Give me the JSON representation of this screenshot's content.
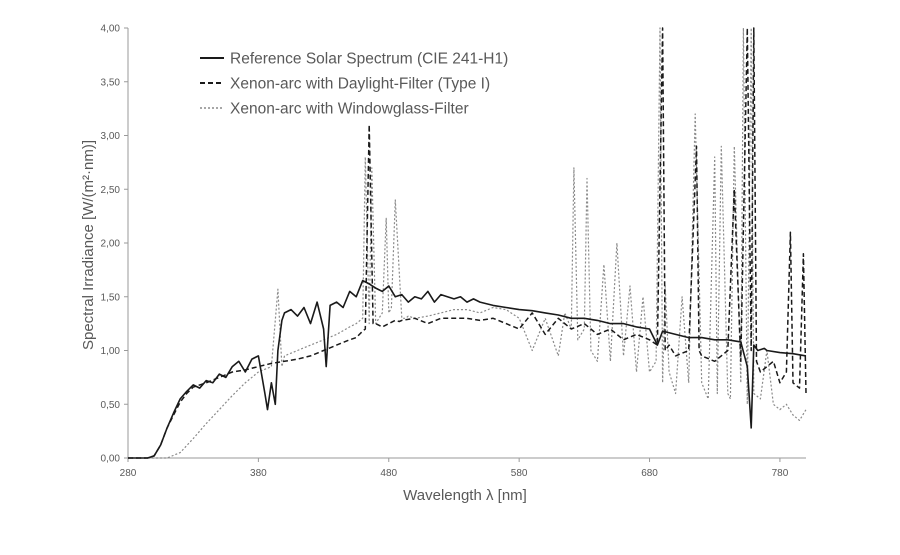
{
  "chart_data": {
    "type": "line",
    "title": "",
    "xlabel": "Wavelength λ [nm]",
    "ylabel": "Spectral Irradiance [W/(m²·nm)]",
    "xlim": [
      280,
      800
    ],
    "ylim": [
      0,
      4
    ],
    "grid": false,
    "legend_position": "top-left",
    "x_ticks": [
      280,
      380,
      480,
      580,
      680,
      780
    ],
    "x_tick_labels": [
      "280",
      "380",
      "480",
      "580",
      "680",
      "780"
    ],
    "y_ticks": [
      0,
      0.5,
      1,
      1.5,
      2,
      2.5,
      3,
      3.5,
      4
    ],
    "y_tick_labels": [
      "0,00",
      "0,50",
      "1,00",
      "1,50",
      "2,00",
      "2,50",
      "3,00",
      "3,50",
      "4,00"
    ],
    "series": [
      {
        "name": "Reference Solar Spectrum (CIE 241-H1)",
        "style": "solid",
        "color": "#1a1a1a",
        "x": [
          280,
          295,
          300,
          305,
          310,
          315,
          320,
          325,
          330,
          335,
          340,
          345,
          350,
          355,
          360,
          365,
          370,
          375,
          380,
          385,
          387,
          390,
          393,
          395,
          398,
          400,
          405,
          410,
          415,
          420,
          425,
          430,
          432,
          435,
          440,
          445,
          450,
          455,
          460,
          465,
          470,
          475,
          480,
          485,
          490,
          495,
          500,
          505,
          510,
          515,
          520,
          525,
          530,
          535,
          540,
          545,
          550,
          560,
          570,
          580,
          590,
          600,
          610,
          620,
          630,
          640,
          650,
          660,
          670,
          680,
          686,
          690,
          700,
          710,
          720,
          730,
          740,
          750,
          755,
          758,
          760,
          763,
          768,
          770,
          780,
          790,
          800
        ],
        "y": [
          0,
          0,
          0.02,
          0.12,
          0.28,
          0.42,
          0.55,
          0.62,
          0.68,
          0.65,
          0.72,
          0.7,
          0.78,
          0.75,
          0.85,
          0.9,
          0.8,
          0.92,
          0.95,
          0.6,
          0.45,
          0.7,
          0.5,
          1.0,
          1.28,
          1.35,
          1.38,
          1.32,
          1.4,
          1.25,
          1.45,
          1.2,
          0.85,
          1.42,
          1.45,
          1.4,
          1.55,
          1.5,
          1.65,
          1.62,
          1.58,
          1.55,
          1.6,
          1.5,
          1.52,
          1.45,
          1.5,
          1.48,
          1.55,
          1.45,
          1.52,
          1.5,
          1.48,
          1.5,
          1.45,
          1.48,
          1.45,
          1.42,
          1.4,
          1.38,
          1.37,
          1.35,
          1.33,
          1.3,
          1.3,
          1.28,
          1.25,
          1.25,
          1.22,
          1.2,
          1.05,
          1.18,
          1.15,
          1.12,
          1.12,
          1.1,
          1.1,
          1.08,
          0.85,
          0.28,
          1.05,
          1.0,
          1.02,
          1.0,
          0.98,
          0.97,
          0.95
        ]
      },
      {
        "name": "Xenon-arc with Daylight-Filter (Type I)",
        "style": "dashed",
        "color": "#1a1a1a",
        "x": [
          280,
          295,
          300,
          305,
          310,
          315,
          320,
          325,
          330,
          340,
          350,
          360,
          370,
          380,
          390,
          400,
          410,
          420,
          430,
          440,
          450,
          455,
          460,
          462,
          465,
          468,
          470,
          475,
          480,
          485,
          488,
          490,
          500,
          510,
          520,
          530,
          540,
          550,
          560,
          570,
          580,
          590,
          600,
          610,
          620,
          630,
          640,
          650,
          660,
          670,
          680,
          686,
          690,
          692,
          695,
          700,
          710,
          716,
          718,
          720,
          730,
          740,
          745,
          750,
          755,
          758,
          760,
          762,
          765,
          770,
          775,
          780,
          785,
          788,
          790,
          795,
          798,
          800
        ],
        "y": [
          0,
          0,
          0.02,
          0.12,
          0.28,
          0.4,
          0.52,
          0.6,
          0.66,
          0.7,
          0.75,
          0.8,
          0.82,
          0.85,
          0.88,
          0.9,
          0.92,
          0.95,
          1.0,
          1.05,
          1.1,
          1.12,
          1.18,
          1.2,
          3.1,
          1.25,
          1.25,
          1.22,
          1.25,
          1.28,
          1.27,
          1.28,
          1.3,
          1.25,
          1.3,
          1.3,
          1.3,
          1.28,
          1.3,
          1.25,
          1.2,
          1.35,
          1.15,
          1.3,
          1.2,
          1.25,
          1.15,
          1.2,
          1.1,
          1.15,
          1.1,
          1.05,
          4.0,
          1.0,
          1.05,
          0.95,
          1.0,
          2.9,
          1.0,
          0.95,
          0.9,
          1.0,
          2.5,
          0.9,
          4.0,
          1.0,
          4.0,
          0.9,
          0.8,
          0.85,
          0.9,
          0.7,
          0.8,
          2.1,
          0.7,
          0.65,
          1.9,
          0.6
        ]
      },
      {
        "name": "Xenon-arc with Windowglass-Filter",
        "style": "dotted",
        "color": "#8a8a8a",
        "x": [
          280,
          310,
          320,
          330,
          340,
          350,
          360,
          370,
          380,
          390,
          395,
          398,
          400,
          410,
          420,
          430,
          440,
          450,
          455,
          460,
          462,
          465,
          467,
          470,
          475,
          478,
          480,
          482,
          485,
          490,
          493,
          495,
          500,
          510,
          520,
          530,
          540,
          550,
          560,
          570,
          580,
          590,
          600,
          610,
          615,
          620,
          622,
          625,
          630,
          632,
          635,
          640,
          645,
          650,
          655,
          660,
          665,
          670,
          675,
          680,
          685,
          688,
          690,
          692,
          695,
          700,
          705,
          710,
          715,
          720,
          725,
          730,
          732,
          735,
          740,
          742,
          745,
          750,
          752,
          755,
          758,
          760,
          765,
          770,
          775,
          780,
          785,
          790,
          795,
          800
        ],
        "y": [
          0,
          0,
          0.05,
          0.18,
          0.32,
          0.45,
          0.58,
          0.7,
          0.8,
          0.85,
          1.57,
          0.85,
          0.95,
          1.0,
          1.05,
          1.1,
          1.15,
          1.22,
          1.25,
          1.3,
          2.8,
          1.25,
          2.7,
          1.25,
          1.35,
          2.23,
          1.35,
          1.4,
          2.4,
          1.3,
          1.3,
          1.32,
          1.3,
          1.32,
          1.35,
          1.38,
          1.38,
          1.35,
          1.4,
          1.38,
          1.3,
          1.0,
          1.3,
          0.95,
          1.35,
          1.2,
          2.7,
          1.1,
          1.2,
          2.6,
          1.0,
          0.9,
          1.8,
          0.9,
          2.0,
          0.95,
          1.6,
          0.8,
          1.5,
          0.8,
          0.9,
          4.0,
          0.7,
          1.6,
          0.8,
          0.6,
          1.5,
          0.7,
          3.2,
          0.7,
          0.55,
          2.8,
          0.6,
          2.9,
          0.6,
          0.55,
          2.9,
          0.7,
          4.0,
          0.5,
          4.0,
          0.6,
          0.55,
          1.0,
          0.5,
          0.45,
          0.5,
          0.4,
          0.35,
          0.45
        ]
      }
    ]
  }
}
